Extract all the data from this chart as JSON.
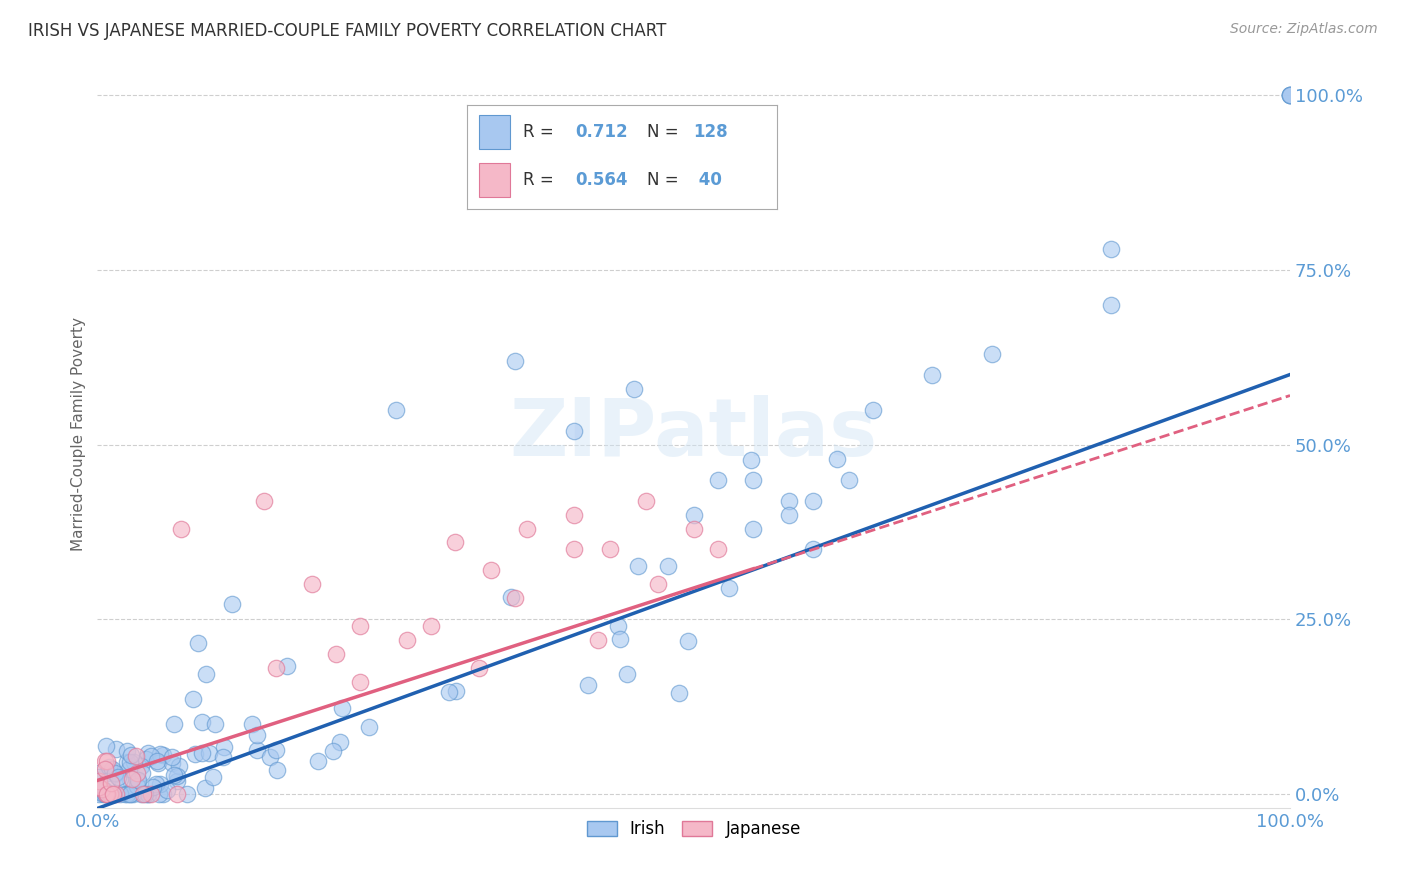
{
  "title": "IRISH VS JAPANESE MARRIED-COUPLE FAMILY POVERTY CORRELATION CHART",
  "source": "Source: ZipAtlas.com",
  "ylabel": "Married-Couple Family Poverty",
  "watermark": "ZIPatlas",
  "irish_R": 0.712,
  "irish_N": 128,
  "japanese_R": 0.564,
  "japanese_N": 40,
  "irish_color": "#A8C8F0",
  "japanese_color": "#F5B8C8",
  "irish_edge_color": "#6098D0",
  "japanese_edge_color": "#E07898",
  "irish_line_color": "#2060B0",
  "japanese_line_color": "#E06080",
  "background_color": "#FFFFFF",
  "grid_color": "#BBBBBB",
  "title_color": "#333333",
  "axis_tick_color": "#5B9BD5",
  "legend_R_color": "#5B9BD5",
  "xlim": [
    0.0,
    1.0
  ],
  "ylim": [
    -0.02,
    1.05
  ],
  "yticks": [
    0.0,
    0.25,
    0.5,
    0.75,
    1.0
  ],
  "ytick_labels": [
    "0.0%",
    "25.0%",
    "50.0%",
    "75.0%",
    "100.0%"
  ],
  "xtick_labels": [
    "0.0%",
    "100.0%"
  ],
  "figsize": [
    14.06,
    8.92
  ],
  "dpi": 100,
  "irish_slope": 0.62,
  "irish_intercept": -0.02,
  "japanese_slope": 0.55,
  "japanese_intercept": 0.02
}
